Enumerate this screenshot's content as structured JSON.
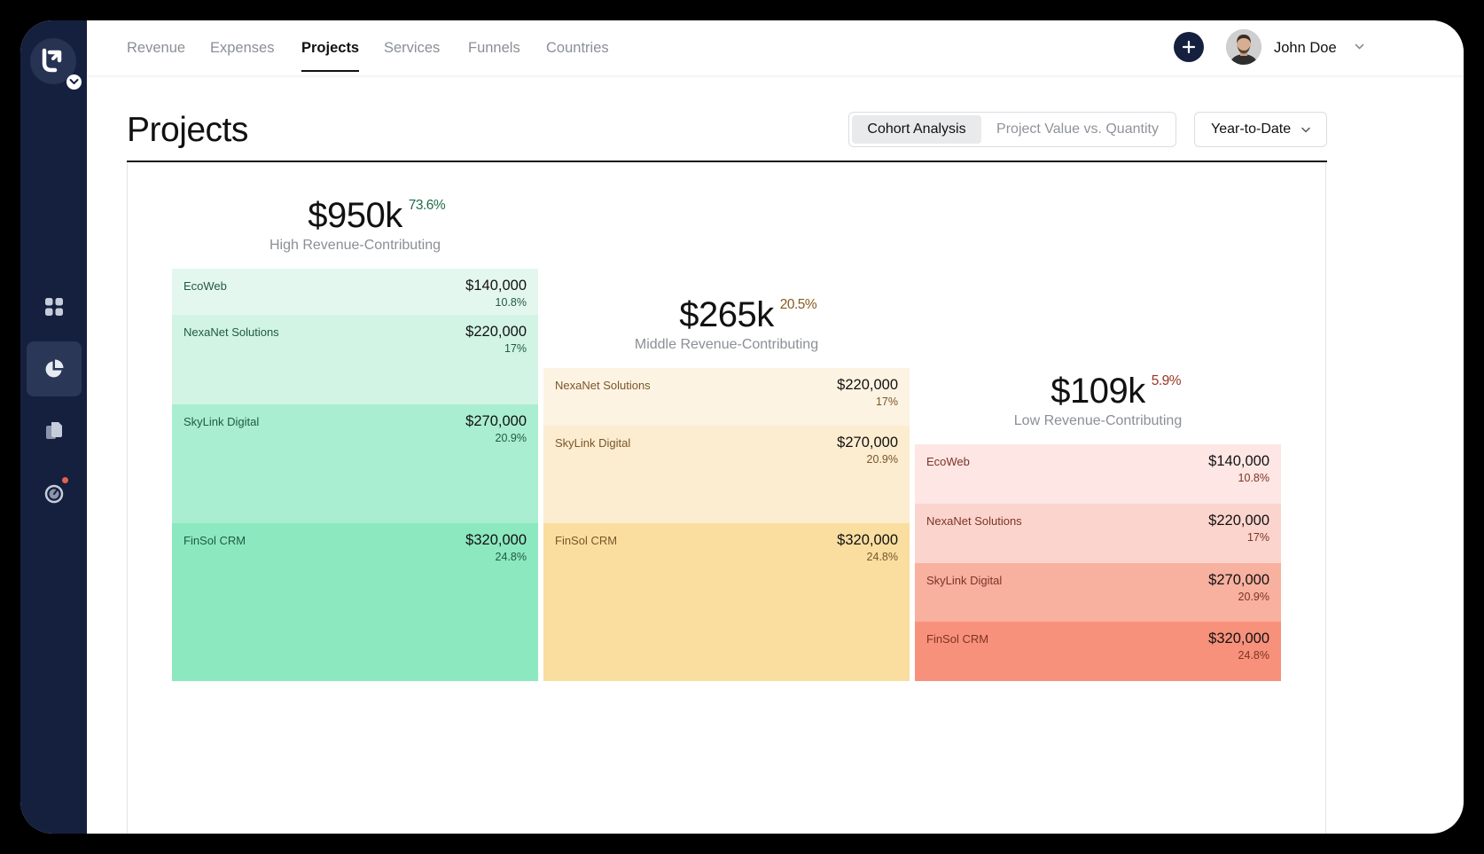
{
  "sidebar": {
    "items": [
      {
        "icon": "dashboard-grid-icon"
      },
      {
        "icon": "pie-chart-icon",
        "active": true
      },
      {
        "icon": "documents-icon"
      },
      {
        "icon": "timer-icon",
        "has_notification": true
      }
    ]
  },
  "nav": {
    "tabs": [
      {
        "label": "Revenue"
      },
      {
        "label": "Expenses"
      },
      {
        "label": "Projects",
        "active": true
      },
      {
        "label": "Services"
      },
      {
        "label": "Funnels"
      },
      {
        "label": "Countries"
      }
    ]
  },
  "user": {
    "name": "John Doe"
  },
  "page": {
    "title": "Projects",
    "view_options": [
      "Cohort Analysis",
      "Project Value vs. Quantity"
    ],
    "selected_view": "Cohort Analysis",
    "date_range": "Year-to-Date"
  },
  "cohorts": [
    {
      "total": "$950k",
      "share": "73.6%",
      "label": "High Revenue-Contributing",
      "accent": "#1f6b4a",
      "projects": [
        {
          "name": "EcoWeb",
          "value": "$140,000",
          "pct": "10.8%",
          "color": "#e4f7ee"
        },
        {
          "name": "NexaNet Solutions",
          "value": "$220,000",
          "pct": "17%",
          "color": "#d2f4e4"
        },
        {
          "name": "SkyLink Digital",
          "value": "$270,000",
          "pct": "20.9%",
          "color": "#a9eed0"
        },
        {
          "name": "FinSol CRM",
          "value": "$320,000",
          "pct": "24.8%",
          "color": "#8ce8bf"
        }
      ]
    },
    {
      "total": "$265k",
      "share": "20.5%",
      "label": "Middle Revenue-Contributing",
      "accent": "#8a5a1e",
      "projects": [
        {
          "name": "NexaNet Solutions",
          "value": "$220,000",
          "pct": "17%",
          "color": "#fdf3e2"
        },
        {
          "name": "SkyLink Digital",
          "value": "$270,000",
          "pct": "20.9%",
          "color": "#fcecd0"
        },
        {
          "name": "FinSol CRM",
          "value": "$320,000",
          "pct": "24.8%",
          "color": "#f9dea0"
        }
      ]
    },
    {
      "total": "$109k",
      "share": "5.9%",
      "label": "Low Revenue-Contributing",
      "accent": "#9a3520",
      "projects": [
        {
          "name": "EcoWeb",
          "value": "$140,000",
          "pct": "10.8%",
          "color": "#fde6e3"
        },
        {
          "name": "NexaNet Solutions",
          "value": "$220,000",
          "pct": "17%",
          "color": "#fbd5cd"
        },
        {
          "name": "SkyLink Digital",
          "value": "$270,000",
          "pct": "20.9%",
          "color": "#f8b09f"
        },
        {
          "name": "FinSol CRM",
          "value": "$320,000",
          "pct": "24.8%",
          "color": "#f7917b"
        }
      ]
    }
  ]
}
